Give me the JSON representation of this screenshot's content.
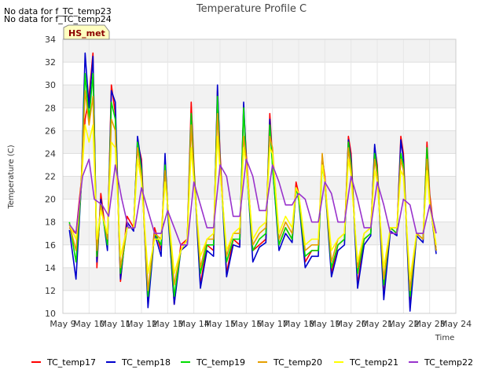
{
  "notices": [
    "No data for f_TC_temp23",
    "No data for f_TC_temp24"
  ],
  "badge": "HS_met",
  "chart_data": {
    "type": "line",
    "title": "Temperature Profile C",
    "xlabel": "Time",
    "ylabel": "Temperature (C)",
    "ylim": [
      10,
      34
    ],
    "yticks": [
      10,
      12,
      14,
      16,
      18,
      20,
      22,
      24,
      26,
      28,
      30,
      32,
      34
    ],
    "xlim": [
      9,
      24
    ],
    "xticks": [
      9,
      10,
      11,
      12,
      13,
      14,
      15,
      16,
      17,
      18,
      19,
      20,
      21,
      22,
      23,
      24
    ],
    "xtick_labels": [
      "May 9",
      "May 10",
      "May 11",
      "May 12",
      "May 13",
      "May 14",
      "May 15",
      "May 16",
      "May 17",
      "May 18",
      "May 19",
      "May 20",
      "May 21",
      "May 22",
      "May 23",
      "May 24"
    ],
    "grid": true,
    "legend_position": "bottom",
    "series": [
      {
        "name": "TC_temp17",
        "color": "#ff0000",
        "x": [
          9.25,
          9.5,
          9.7,
          9.85,
          10.0,
          10.15,
          10.3,
          10.45,
          10.7,
          10.85,
          11.0,
          11.2,
          11.45,
          11.7,
          11.85,
          12.0,
          12.25,
          12.5,
          12.75,
          12.9,
          13.0,
          13.25,
          13.5,
          13.75,
          13.9,
          14.0,
          14.25,
          14.5,
          14.75,
          14.9,
          15.0,
          15.25,
          15.5,
          15.75,
          15.9,
          16.0,
          16.25,
          16.5,
          16.75,
          16.9,
          17.0,
          17.25,
          17.5,
          17.75,
          17.9,
          18.0,
          18.25,
          18.5,
          18.75,
          18.9,
          19.0,
          19.25,
          19.5,
          19.75,
          19.9,
          20.0,
          20.25,
          20.5,
          20.75,
          20.9,
          21.0,
          21.25,
          21.5,
          21.75,
          21.9,
          22.0,
          22.25,
          22.5,
          22.75,
          22.9,
          23.0,
          23.25
        ],
        "y": [
          17.5,
          17.0,
          21.5,
          27.0,
          29.0,
          32.8,
          14.0,
          20.5,
          15.8,
          30.0,
          27.5,
          12.8,
          18.5,
          17.5,
          25.0,
          23.5,
          10.8,
          17.5,
          15.5,
          23.5,
          19.5,
          10.8,
          16.0,
          16.5,
          28.5,
          23.0,
          12.5,
          16.0,
          15.5,
          29.5,
          24.0,
          13.5,
          16.5,
          16.0,
          28.0,
          24.0,
          15.5,
          16.0,
          16.5,
          27.5,
          23.5,
          16.0,
          17.5,
          16.5,
          21.5,
          20.5,
          14.5,
          15.5,
          15.5,
          23.5,
          22.0,
          13.5,
          16.0,
          16.5,
          25.5,
          24.0,
          12.5,
          16.5,
          17.0,
          24.5,
          23.0,
          11.5,
          17.5,
          17.0,
          25.5,
          24.0,
          10.5,
          17.0,
          16.5,
          25.0,
          20.5,
          15.5
        ]
      },
      {
        "name": "TC_temp18",
        "color": "#0000cc",
        "x": [
          9.25,
          9.5,
          9.7,
          9.85,
          10.0,
          10.15,
          10.3,
          10.45,
          10.7,
          10.85,
          11.0,
          11.2,
          11.45,
          11.7,
          11.85,
          12.0,
          12.25,
          12.5,
          12.75,
          12.9,
          13.0,
          13.25,
          13.5,
          13.75,
          13.9,
          14.0,
          14.25,
          14.5,
          14.75,
          14.9,
          15.0,
          15.25,
          15.5,
          15.75,
          15.9,
          16.0,
          16.25,
          16.5,
          16.75,
          16.9,
          17.0,
          17.25,
          17.5,
          17.75,
          17.9,
          18.0,
          18.25,
          18.5,
          18.75,
          18.9,
          19.0,
          19.25,
          19.5,
          19.75,
          19.9,
          20.0,
          20.25,
          20.5,
          20.75,
          20.9,
          21.0,
          21.25,
          21.5,
          21.75,
          21.9,
          22.0,
          22.25,
          22.5,
          22.75,
          22.9,
          23.0,
          23.25
        ],
        "y": [
          17.3,
          13.0,
          21.0,
          32.8,
          28.0,
          32.5,
          14.5,
          20.0,
          15.5,
          29.5,
          28.5,
          13.0,
          18.0,
          17.2,
          25.5,
          23.0,
          10.5,
          17.0,
          15.0,
          24.0,
          19.0,
          10.8,
          15.5,
          16.0,
          27.5,
          22.5,
          12.2,
          15.5,
          15.0,
          30.0,
          23.5,
          13.2,
          16.0,
          15.8,
          28.5,
          23.5,
          14.5,
          15.8,
          16.2,
          27.0,
          23.0,
          15.5,
          17.0,
          16.2,
          21.0,
          20.0,
          14.0,
          15.0,
          15.0,
          23.8,
          21.5,
          13.2,
          15.5,
          16.0,
          25.2,
          23.5,
          12.2,
          16.0,
          16.8,
          24.8,
          22.5,
          11.2,
          17.2,
          16.8,
          25.2,
          23.5,
          10.2,
          16.8,
          16.2,
          24.5,
          20.0,
          15.2
        ]
      },
      {
        "name": "TC_temp19",
        "color": "#00dd00",
        "x": [
          9.25,
          9.5,
          9.7,
          9.85,
          10.0,
          10.15,
          10.3,
          10.45,
          10.7,
          10.85,
          11.0,
          11.2,
          11.45,
          11.7,
          11.85,
          12.0,
          12.25,
          12.5,
          12.75,
          12.9,
          13.0,
          13.25,
          13.5,
          13.75,
          13.9,
          14.0,
          14.25,
          14.5,
          14.75,
          14.9,
          15.0,
          15.25,
          15.5,
          15.75,
          15.9,
          16.0,
          16.25,
          16.5,
          16.75,
          16.9,
          17.0,
          17.25,
          17.5,
          17.75,
          17.9,
          18.0,
          18.25,
          18.5,
          18.75,
          18.9,
          19.0,
          19.25,
          19.5,
          19.75,
          19.9,
          20.0,
          20.25,
          20.5,
          20.75,
          20.9,
          21.0,
          21.25,
          21.5,
          21.75,
          21.9,
          22.0,
          22.25,
          22.5,
          22.75,
          22.9,
          23.0,
          23.25
        ],
        "y": [
          18.0,
          14.5,
          21.0,
          31.0,
          27.0,
          31.0,
          15.0,
          19.5,
          16.0,
          28.5,
          27.0,
          13.5,
          17.5,
          17.5,
          25.0,
          22.5,
          11.5,
          17.0,
          16.0,
          23.0,
          19.5,
          11.5,
          15.5,
          16.5,
          27.5,
          22.5,
          13.5,
          16.0,
          16.0,
          29.0,
          23.0,
          14.5,
          16.5,
          16.5,
          28.0,
          23.0,
          15.5,
          16.5,
          17.0,
          26.5,
          23.0,
          16.0,
          17.5,
          16.5,
          21.0,
          20.0,
          15.0,
          15.5,
          15.5,
          23.0,
          21.5,
          14.0,
          16.0,
          16.5,
          25.0,
          23.0,
          13.5,
          16.5,
          17.0,
          24.0,
          22.5,
          12.5,
          17.5,
          17.0,
          24.0,
          23.0,
          11.5,
          17.0,
          16.5,
          24.5,
          20.0,
          15.5
        ]
      },
      {
        "name": "TC_temp20",
        "color": "#e69f00",
        "x": [
          9.25,
          9.5,
          9.7,
          9.85,
          10.0,
          10.15,
          10.3,
          10.45,
          10.7,
          10.85,
          11.0,
          11.2,
          11.45,
          11.7,
          11.85,
          12.0,
          12.25,
          12.5,
          12.75,
          12.9,
          13.0,
          13.25,
          13.5,
          13.75,
          13.9,
          14.0,
          14.25,
          14.5,
          14.75,
          14.9,
          15.0,
          15.25,
          15.5,
          15.75,
          15.9,
          16.0,
          16.25,
          16.5,
          16.75,
          16.9,
          17.0,
          17.25,
          17.5,
          17.75,
          17.9,
          18.0,
          18.25,
          18.5,
          18.75,
          18.9,
          19.0,
          19.25,
          19.5,
          19.75,
          19.9,
          20.0,
          20.25,
          20.5,
          20.75,
          20.9,
          21.0,
          21.25,
          21.5,
          21.75,
          21.9,
          22.0,
          22.25,
          22.5,
          22.75,
          22.9,
          23.0,
          23.25
        ],
        "y": [
          17.8,
          15.5,
          21.5,
          29.5,
          26.5,
          29.0,
          15.5,
          19.5,
          16.5,
          27.0,
          26.0,
          14.0,
          17.5,
          17.5,
          24.5,
          22.0,
          12.0,
          17.0,
          16.5,
          22.5,
          19.5,
          12.5,
          15.5,
          16.5,
          26.5,
          22.0,
          14.0,
          16.5,
          16.5,
          27.5,
          23.0,
          15.0,
          17.0,
          17.0,
          25.5,
          23.5,
          16.0,
          17.0,
          17.5,
          25.5,
          24.5,
          16.5,
          18.0,
          17.0,
          21.0,
          20.5,
          15.5,
          16.0,
          16.0,
          24.0,
          21.5,
          14.5,
          16.5,
          17.0,
          24.5,
          22.5,
          14.0,
          17.0,
          17.5,
          23.5,
          22.0,
          13.0,
          17.5,
          17.5,
          23.5,
          22.5,
          12.0,
          17.0,
          16.5,
          23.5,
          20.0,
          15.5
        ]
      },
      {
        "name": "TC_temp21",
        "color": "#ffff00",
        "x": [
          9.25,
          9.5,
          9.7,
          9.85,
          10.0,
          10.15,
          10.3,
          10.45,
          10.7,
          10.85,
          11.0,
          11.2,
          11.45,
          11.7,
          11.85,
          12.0,
          12.25,
          12.5,
          12.75,
          12.9,
          13.0,
          13.25,
          13.5,
          13.75,
          13.9,
          14.0,
          14.25,
          14.5,
          14.75,
          14.9,
          15.0,
          15.25,
          15.5,
          15.75,
          15.9,
          16.0,
          16.25,
          16.5,
          16.75,
          16.9,
          17.0,
          17.25,
          17.5,
          17.75,
          17.9,
          18.0,
          18.25,
          18.5,
          18.75,
          18.9,
          19.0,
          19.25,
          19.5,
          19.75,
          19.9,
          20.0,
          20.25,
          20.5,
          20.75,
          20.9,
          21.0,
          21.25,
          21.5,
          21.75,
          21.9,
          22.0,
          22.25,
          22.5,
          22.75,
          22.9,
          23.0,
          23.25
        ],
        "y": [
          17.8,
          16.5,
          21.0,
          26.5,
          25.0,
          26.5,
          16.5,
          19.0,
          17.0,
          25.0,
          24.5,
          15.0,
          17.5,
          17.5,
          23.5,
          21.5,
          13.5,
          16.5,
          16.5,
          21.5,
          19.5,
          13.5,
          15.5,
          16.5,
          24.5,
          21.5,
          15.0,
          16.5,
          17.0,
          25.5,
          22.5,
          15.5,
          17.0,
          17.5,
          24.5,
          23.0,
          16.5,
          17.5,
          18.0,
          24.5,
          24.0,
          17.0,
          18.5,
          17.5,
          21.0,
          20.5,
          16.0,
          16.5,
          16.5,
          23.0,
          21.5,
          15.5,
          16.5,
          17.0,
          23.5,
          22.0,
          14.5,
          17.0,
          17.5,
          22.5,
          21.5,
          14.0,
          17.5,
          17.5,
          22.5,
          22.0,
          13.0,
          17.0,
          17.0,
          22.5,
          19.5,
          16.0
        ]
      },
      {
        "name": "TC_temp22",
        "color": "#9933cc",
        "x": [
          9.25,
          9.5,
          9.75,
          10.0,
          10.2,
          10.5,
          10.75,
          11.0,
          11.25,
          11.5,
          11.75,
          12.0,
          12.25,
          12.5,
          12.75,
          13.0,
          13.25,
          13.5,
          13.75,
          14.0,
          14.25,
          14.5,
          14.75,
          15.0,
          15.25,
          15.5,
          15.75,
          16.0,
          16.25,
          16.5,
          16.75,
          17.0,
          17.25,
          17.5,
          17.75,
          18.0,
          18.25,
          18.5,
          18.75,
          19.0,
          19.25,
          19.5,
          19.75,
          20.0,
          20.25,
          20.5,
          20.75,
          21.0,
          21.25,
          21.5,
          21.75,
          22.0,
          22.25,
          22.5,
          22.75,
          23.0,
          23.25
        ],
        "y": [
          17.8,
          17.0,
          22.0,
          23.5,
          20.0,
          19.5,
          18.5,
          23.0,
          20.0,
          17.5,
          17.5,
          21.0,
          19.0,
          17.0,
          17.0,
          19.0,
          17.5,
          16.0,
          16.0,
          21.5,
          19.5,
          17.5,
          17.5,
          23.0,
          22.0,
          18.5,
          18.5,
          23.5,
          22.0,
          19.0,
          19.0,
          23.0,
          21.5,
          19.5,
          19.5,
          20.5,
          20.0,
          18.0,
          18.0,
          21.5,
          20.5,
          18.0,
          18.0,
          22.0,
          20.0,
          17.5,
          17.5,
          21.5,
          19.5,
          17.0,
          17.0,
          20.0,
          19.5,
          17.0,
          17.0,
          19.5,
          17.0
        ]
      }
    ]
  }
}
